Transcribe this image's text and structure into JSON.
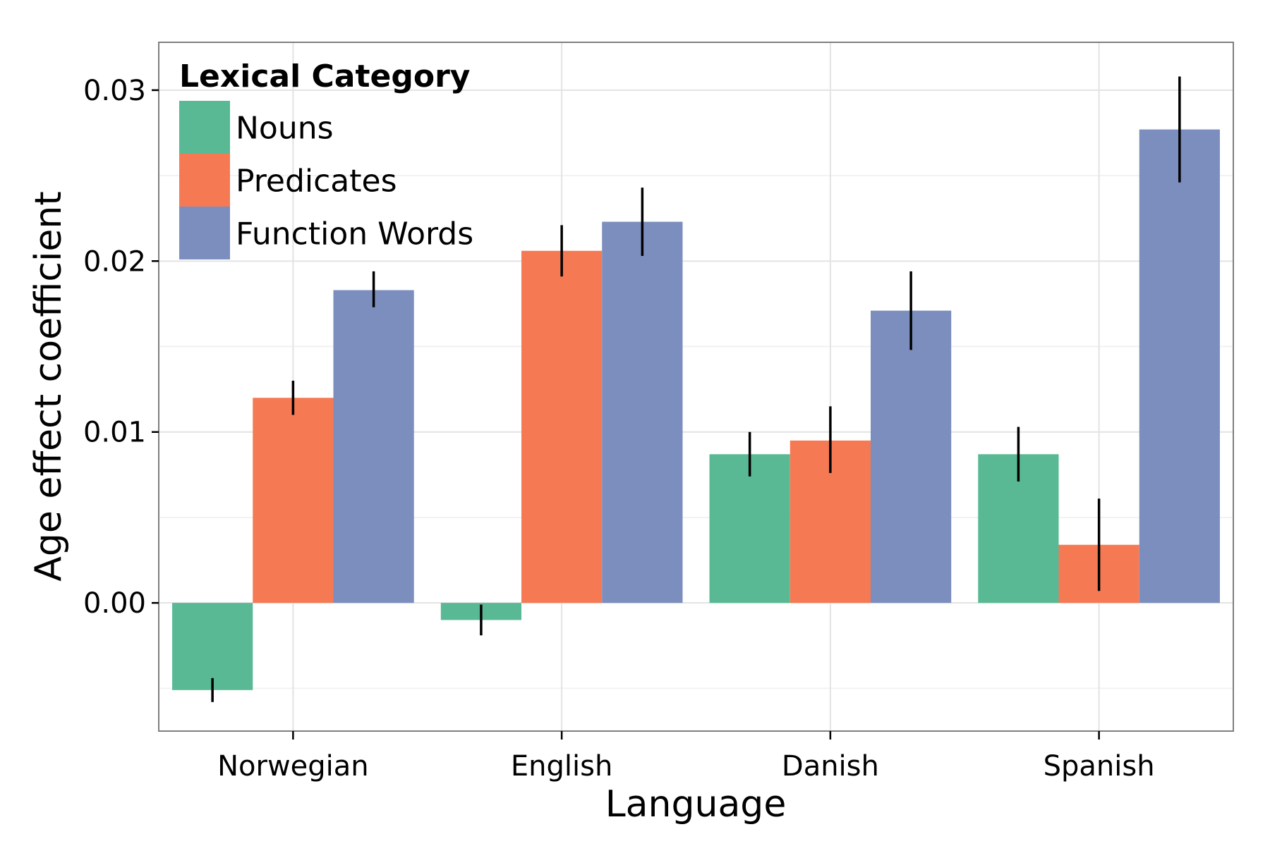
{
  "chart_data": {
    "type": "bar",
    "title": "",
    "xlabel": "Language",
    "ylabel": "Age effect coefficient",
    "categories": [
      "Norwegian",
      "English",
      "Danish",
      "Spanish"
    ],
    "ylim": [
      -0.0075,
      0.0328
    ],
    "yticks": [
      0.0,
      0.01,
      0.02,
      0.03
    ],
    "ytick_labels": [
      "0.00",
      "0.01",
      "0.02",
      "0.03"
    ],
    "grid": true,
    "legend": {
      "title": "Lexical Category",
      "position": "top-left"
    },
    "series": [
      {
        "name": "Nouns",
        "color": "#59b994",
        "values": [
          -0.0051,
          -0.001,
          0.0087,
          0.0087
        ],
        "error_low": [
          -0.0058,
          -0.0019,
          0.0074,
          0.0071
        ],
        "error_high": [
          -0.0044,
          -0.0001,
          0.01,
          0.0103
        ]
      },
      {
        "name": "Predicates",
        "color": "#f57a54",
        "values": [
          0.012,
          0.0206,
          0.0095,
          0.0034
        ],
        "error_low": [
          0.011,
          0.0191,
          0.0076,
          0.0007
        ],
        "error_high": [
          0.013,
          0.0221,
          0.0115,
          0.0061
        ]
      },
      {
        "name": "Function Words",
        "color": "#7b8ebd",
        "values": [
          0.0183,
          0.0223,
          0.0171,
          0.0277
        ],
        "error_low": [
          0.0173,
          0.0203,
          0.0148,
          0.0246
        ],
        "error_high": [
          0.0194,
          0.0243,
          0.0194,
          0.0308
        ]
      }
    ]
  }
}
